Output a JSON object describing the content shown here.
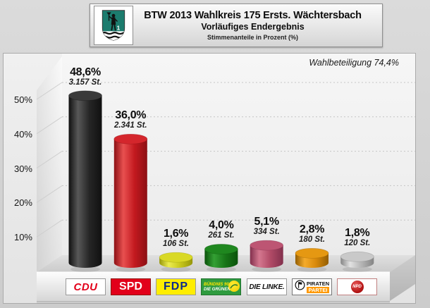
{
  "header": {
    "title": "BTW 2013 Wahlkreis 175 Ersts. Wächtersbach",
    "subtitle": "Vorläufiges Endergebnis",
    "note": "Stimmenanteile in Prozent (%)",
    "crest_name": "Wächtersbach coat of arms",
    "crest_digit": "1"
  },
  "turnout_label": "Wahlbeteiligung 74,4%",
  "chart_data": {
    "type": "bar",
    "style": "3d-cylinders",
    "title": "BTW 2013 Wahlkreis 175 Ersts. Wächtersbach",
    "subtitle": "Vorläufiges Endergebnis",
    "ylabel": "Stimmenanteile in Prozent (%)",
    "ylim": [
      0,
      55
    ],
    "grid": "dotted-horizontal",
    "turnout_pct": 74.4,
    "y_ticks": [
      {
        "value": 50,
        "label": "50%"
      },
      {
        "value": 40,
        "label": "40%"
      },
      {
        "value": 30,
        "label": "30%"
      },
      {
        "value": 20,
        "label": "20%"
      },
      {
        "value": 10,
        "label": "10%"
      }
    ],
    "categories": [
      "CDU",
      "SPD",
      "FDP",
      "BÜNDNIS 90/DIE GRÜNEN",
      "DIE LINKE",
      "PIRATENPARTEI",
      "NPD"
    ],
    "values": [
      48.6,
      36.0,
      1.6,
      4.0,
      5.1,
      2.8,
      1.8
    ],
    "bars": [
      {
        "party": "CDU",
        "pct": 48.6,
        "pct_label": "48,6%",
        "votes_label": "3.157 St.",
        "colors": {
          "edge": "#101010",
          "hi": "#585858",
          "mid": "#262626",
          "top": "#3a3a3a"
        },
        "logo": {
          "kind": "cdu",
          "text": "CDU",
          "bg": "#ffffff",
          "fg": "#e2001a"
        }
      },
      {
        "party": "SPD",
        "pct": 36.0,
        "pct_label": "36,0%",
        "votes_label": "2.341 St.",
        "colors": {
          "edge": "#8c1014",
          "hi": "#e85050",
          "mid": "#c3191f",
          "top": "#d4262c"
        },
        "logo": {
          "kind": "spd",
          "text": "SPD",
          "bg": "#e2001a",
          "fg": "#ffffff"
        }
      },
      {
        "party": "FDP",
        "pct": 1.6,
        "pct_label": "1,6%",
        "votes_label": "106 St.",
        "colors": {
          "edge": "#96960a",
          "hi": "#ecec50",
          "mid": "#c9c91c",
          "top": "#d9d926"
        },
        "logo": {
          "kind": "fdp",
          "text": "FDP",
          "bg": "#ffed00",
          "fg": "#0b2a8d"
        }
      },
      {
        "party": "BÜNDNIS 90/DIE GRÜNEN",
        "pct": 4.0,
        "pct_label": "4,0%",
        "votes_label": "261 St.",
        "colors": {
          "edge": "#0a520a",
          "hi": "#34a034",
          "mid": "#187618",
          "top": "#1f871f"
        },
        "logo": {
          "kind": "gruene",
          "line1": "BÜNDNIS 90",
          "line2": "DIE GRÜNEN",
          "bg": "#2f9b3f",
          "fg": "#ffffff"
        }
      },
      {
        "party": "DIE LINKE",
        "pct": 5.1,
        "pct_label": "5,1%",
        "votes_label": "334 St.",
        "colors": {
          "edge": "#82304d",
          "hi": "#d4778f",
          "mid": "#b04a66",
          "top": "#bd5573"
        },
        "logo": {
          "kind": "linke",
          "text": "DIE LINKE.",
          "bg": "#ffffff",
          "fg": "#111111"
        }
      },
      {
        "party": "PIRATENPARTEI",
        "pct": 2.8,
        "pct_label": "2,8%",
        "votes_label": "180 St.",
        "colors": {
          "edge": "#935e04",
          "hi": "#f5ab2b",
          "mid": "#d8890b",
          "top": "#e59812"
        },
        "logo": {
          "kind": "piraten",
          "line1": "PIRATEN",
          "line2": "PARTEI",
          "bg": "#ffffff",
          "accent": "#ff9900"
        }
      },
      {
        "party": "NPD",
        "pct": 1.8,
        "pct_label": "1,8%",
        "votes_label": "120 St.",
        "colors": {
          "edge": "#858585",
          "hi": "#e2e2e2",
          "mid": "#b5b5b5",
          "top": "#c9c9c9"
        },
        "logo": {
          "kind": "npd",
          "text": "NPD",
          "bg": "#ffffff",
          "accent": "#cc1111"
        }
      }
    ]
  }
}
